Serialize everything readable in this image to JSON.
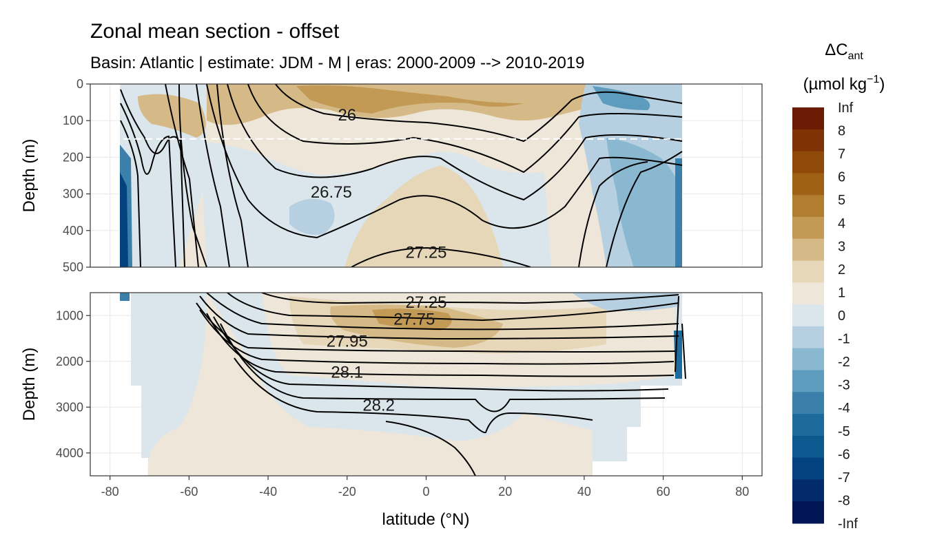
{
  "chart_data": {
    "type": "heatmap",
    "title": "Zonal mean section - offset",
    "subtitle": "Basin: Atlantic | estimate: JDM - M | eras: 2000-2009 --> 2010-2019",
    "xlabel": "latitude (°N)",
    "x_ticks": [
      "-80",
      "-60",
      "-40",
      "-20",
      "0",
      "20",
      "40",
      "60",
      "80"
    ],
    "x_tick_values": [
      -80,
      -60,
      -40,
      -20,
      0,
      20,
      40,
      60,
      80
    ],
    "xlim": [
      -85,
      85
    ],
    "data_extent_lat": [
      -78,
      64
    ],
    "panels": [
      {
        "ylabel": "Depth (m)",
        "ylim": [
          0,
          500
        ],
        "y_ticks": [
          "0",
          "100",
          "200",
          "300",
          "400",
          "500"
        ],
        "y_tick_values": [
          0,
          100,
          200,
          300,
          400,
          500
        ],
        "reference_line_depth": 150,
        "isopycnal_labels": [
          {
            "text": "26",
            "lat": -20,
            "depth": 85
          },
          {
            "text": "26.75",
            "lat": -24,
            "depth": 295
          },
          {
            "text": "27.25",
            "lat": 0,
            "depth": 460
          }
        ]
      },
      {
        "ylabel": "Depth (m)",
        "ylim": [
          500,
          4500
        ],
        "y_ticks": [
          "1000",
          "2000",
          "3000",
          "4000"
        ],
        "y_tick_values": [
          1000,
          2000,
          3000,
          4000
        ],
        "isopycnal_labels": [
          {
            "text": "27.25",
            "lat": 0,
            "depth": 500
          },
          {
            "text": "27.75",
            "lat": -3,
            "depth": 1080
          },
          {
            "text": "27.95",
            "lat": -20,
            "depth": 1560
          },
          {
            "text": "28.1",
            "lat": -20,
            "depth": 2240
          },
          {
            "text": "28.2",
            "lat": -12,
            "depth": 2960
          }
        ]
      }
    ],
    "legend": {
      "title": "ΔC",
      "title_subscript": "ant",
      "unit": "(µmol kg",
      "unit_superscript": "−1",
      "unit_close": ")",
      "placement": "right",
      "levels": [
        "Inf",
        "8",
        "7",
        "6",
        "5",
        "4",
        "3",
        "2",
        "1",
        "0",
        "-1",
        "-2",
        "-3",
        "-4",
        "-5",
        "-6",
        "-7",
        "-8",
        "-Inf"
      ],
      "colors": [
        "#6b1a04",
        "#7e3205",
        "#8f4a09",
        "#9e6115",
        "#b17d30",
        "#c29a55",
        "#d5ba87",
        "#e6d7b8",
        "#ede6d9",
        "#dbe6ec",
        "#b6d0e1",
        "#89b8d0",
        "#5e9cbd",
        "#3a80ab",
        "#1d6b9d",
        "#0c598f",
        "#03417f",
        "#032a6a",
        "#021656"
      ]
    }
  }
}
